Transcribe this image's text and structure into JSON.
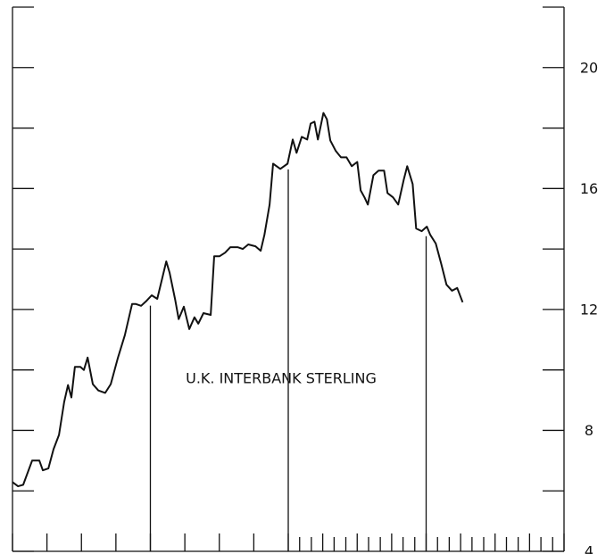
{
  "chart_data": {
    "type": "line",
    "annotation": "U.K. INTERBANK STERLING",
    "ylim": [
      4,
      22
    ],
    "yticks": [
      4,
      8,
      12,
      16,
      20
    ],
    "minor_yticks": [
      6,
      10,
      14,
      18,
      22
    ],
    "xlim": [
      0,
      16
    ],
    "xticks": [
      0,
      1,
      2,
      3,
      4,
      5,
      6,
      7,
      8,
      9,
      10,
      11,
      12,
      13,
      14,
      15,
      16
    ],
    "minor_xticks": [
      8.33,
      8.67,
      9.33,
      9.67,
      10.33,
      10.67,
      11.33,
      11.67,
      12.33,
      12.67,
      13.33,
      13.67,
      14.33,
      14.67,
      15.33,
      15.67
    ],
    "vlines": [
      4,
      8,
      12
    ],
    "color": "#111111",
    "x": [
      0,
      0.16,
      0.31,
      0.57,
      0.78,
      0.88,
      1.04,
      1.19,
      1.35,
      1.5,
      1.61,
      1.71,
      1.81,
      1.97,
      2.07,
      2.18,
      2.33,
      2.49,
      2.69,
      2.85,
      3.06,
      3.26,
      3.47,
      3.58,
      3.73,
      3.89,
      4.04,
      4.2,
      4.35,
      4.46,
      4.56,
      4.72,
      4.82,
      4.97,
      5.13,
      5.28,
      5.39,
      5.54,
      5.75,
      5.85,
      6.01,
      6.17,
      6.32,
      6.53,
      6.68,
      6.84,
      7.05,
      7.2,
      7.31,
      7.46,
      7.56,
      7.77,
      7.98,
      8.13,
      8.24,
      8.39,
      8.55,
      8.65,
      8.76,
      8.86,
      9.02,
      9.12,
      9.22,
      9.38,
      9.53,
      9.69,
      9.84,
      10.0,
      10.1,
      10.21,
      10.31,
      10.47,
      10.62,
      10.78,
      10.88,
      11.04,
      11.19,
      11.35,
      11.45,
      11.61,
      11.71,
      11.87,
      12.02,
      12.12,
      12.28,
      12.44,
      12.59,
      12.75,
      12.9,
      13.06
    ],
    "values": [
      6.29,
      6.15,
      6.2,
      7.0,
      7.0,
      6.68,
      6.74,
      7.38,
      7.85,
      8.94,
      9.5,
      9.09,
      10.1,
      10.1,
      10.0,
      10.41,
      9.53,
      9.32,
      9.24,
      9.53,
      10.41,
      11.15,
      12.18,
      12.18,
      12.12,
      12.29,
      12.47,
      12.35,
      13.06,
      13.59,
      13.21,
      12.32,
      11.68,
      12.09,
      11.35,
      11.74,
      11.53,
      11.88,
      11.82,
      13.76,
      13.76,
      13.88,
      14.06,
      14.06,
      14.0,
      14.15,
      14.09,
      13.94,
      14.47,
      15.47,
      16.82,
      16.65,
      16.82,
      17.62,
      17.18,
      17.71,
      17.62,
      18.15,
      18.21,
      17.62,
      18.5,
      18.29,
      17.59,
      17.24,
      17.03,
      17.03,
      16.74,
      16.88,
      15.94,
      15.71,
      15.47,
      16.44,
      16.59,
      16.59,
      15.85,
      15.71,
      15.47,
      16.29,
      16.74,
      16.15,
      14.68,
      14.59,
      14.74,
      14.47,
      14.18,
      13.5,
      12.82,
      12.62,
      12.71,
      12.24
    ]
  }
}
